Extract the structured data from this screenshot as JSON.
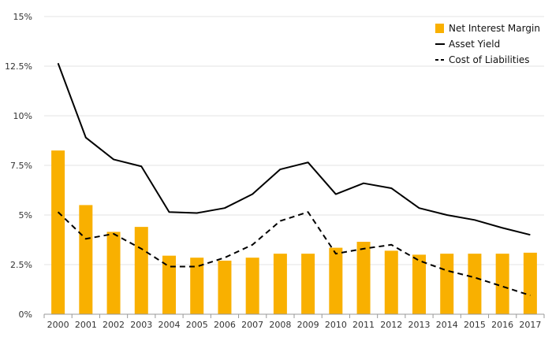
{
  "chart_data": {
    "type": "bar",
    "categories": [
      "2000",
      "2001",
      "2002",
      "2003",
      "2004",
      "2005",
      "2006",
      "2007",
      "2008",
      "2009",
      "2010",
      "2011",
      "2012",
      "2013",
      "2014",
      "2015",
      "2016",
      "2017"
    ],
    "series": [
      {
        "name": "Net Interest Margin",
        "kind": "bar",
        "color": "#F9B000",
        "values": [
          8.25,
          5.5,
          4.15,
          4.4,
          2.95,
          2.85,
          2.7,
          2.85,
          3.05,
          3.05,
          3.35,
          3.65,
          3.2,
          3.0,
          3.05,
          3.05,
          3.05,
          3.1
        ]
      },
      {
        "name": "Asset Yield",
        "kind": "line",
        "color": "#000000",
        "dash": "solid",
        "values": [
          12.65,
          8.9,
          7.8,
          7.45,
          5.15,
          5.1,
          5.35,
          6.05,
          7.3,
          7.65,
          6.05,
          6.6,
          6.35,
          5.35,
          5.0,
          4.75,
          4.35,
          4.0
        ]
      },
      {
        "name": "Cost of Liabilities",
        "kind": "line",
        "color": "#000000",
        "dash": "dashed",
        "values": [
          5.15,
          3.8,
          4.05,
          3.3,
          2.4,
          2.4,
          2.85,
          3.5,
          4.7,
          5.15,
          3.05,
          3.3,
          3.5,
          2.7,
          2.2,
          1.85,
          1.4,
          0.95
        ]
      }
    ],
    "y_ticks": [
      0,
      2.5,
      5,
      7.5,
      10,
      12.5,
      15
    ],
    "y_tick_labels": [
      "0%",
      "2.5%",
      "5%",
      "7.5%",
      "10%",
      "12.5%",
      "15%"
    ],
    "ylim": [
      0,
      15
    ],
    "grid": true,
    "legend_position": "top-right",
    "title": "",
    "xlabel": "",
    "ylabel": ""
  }
}
